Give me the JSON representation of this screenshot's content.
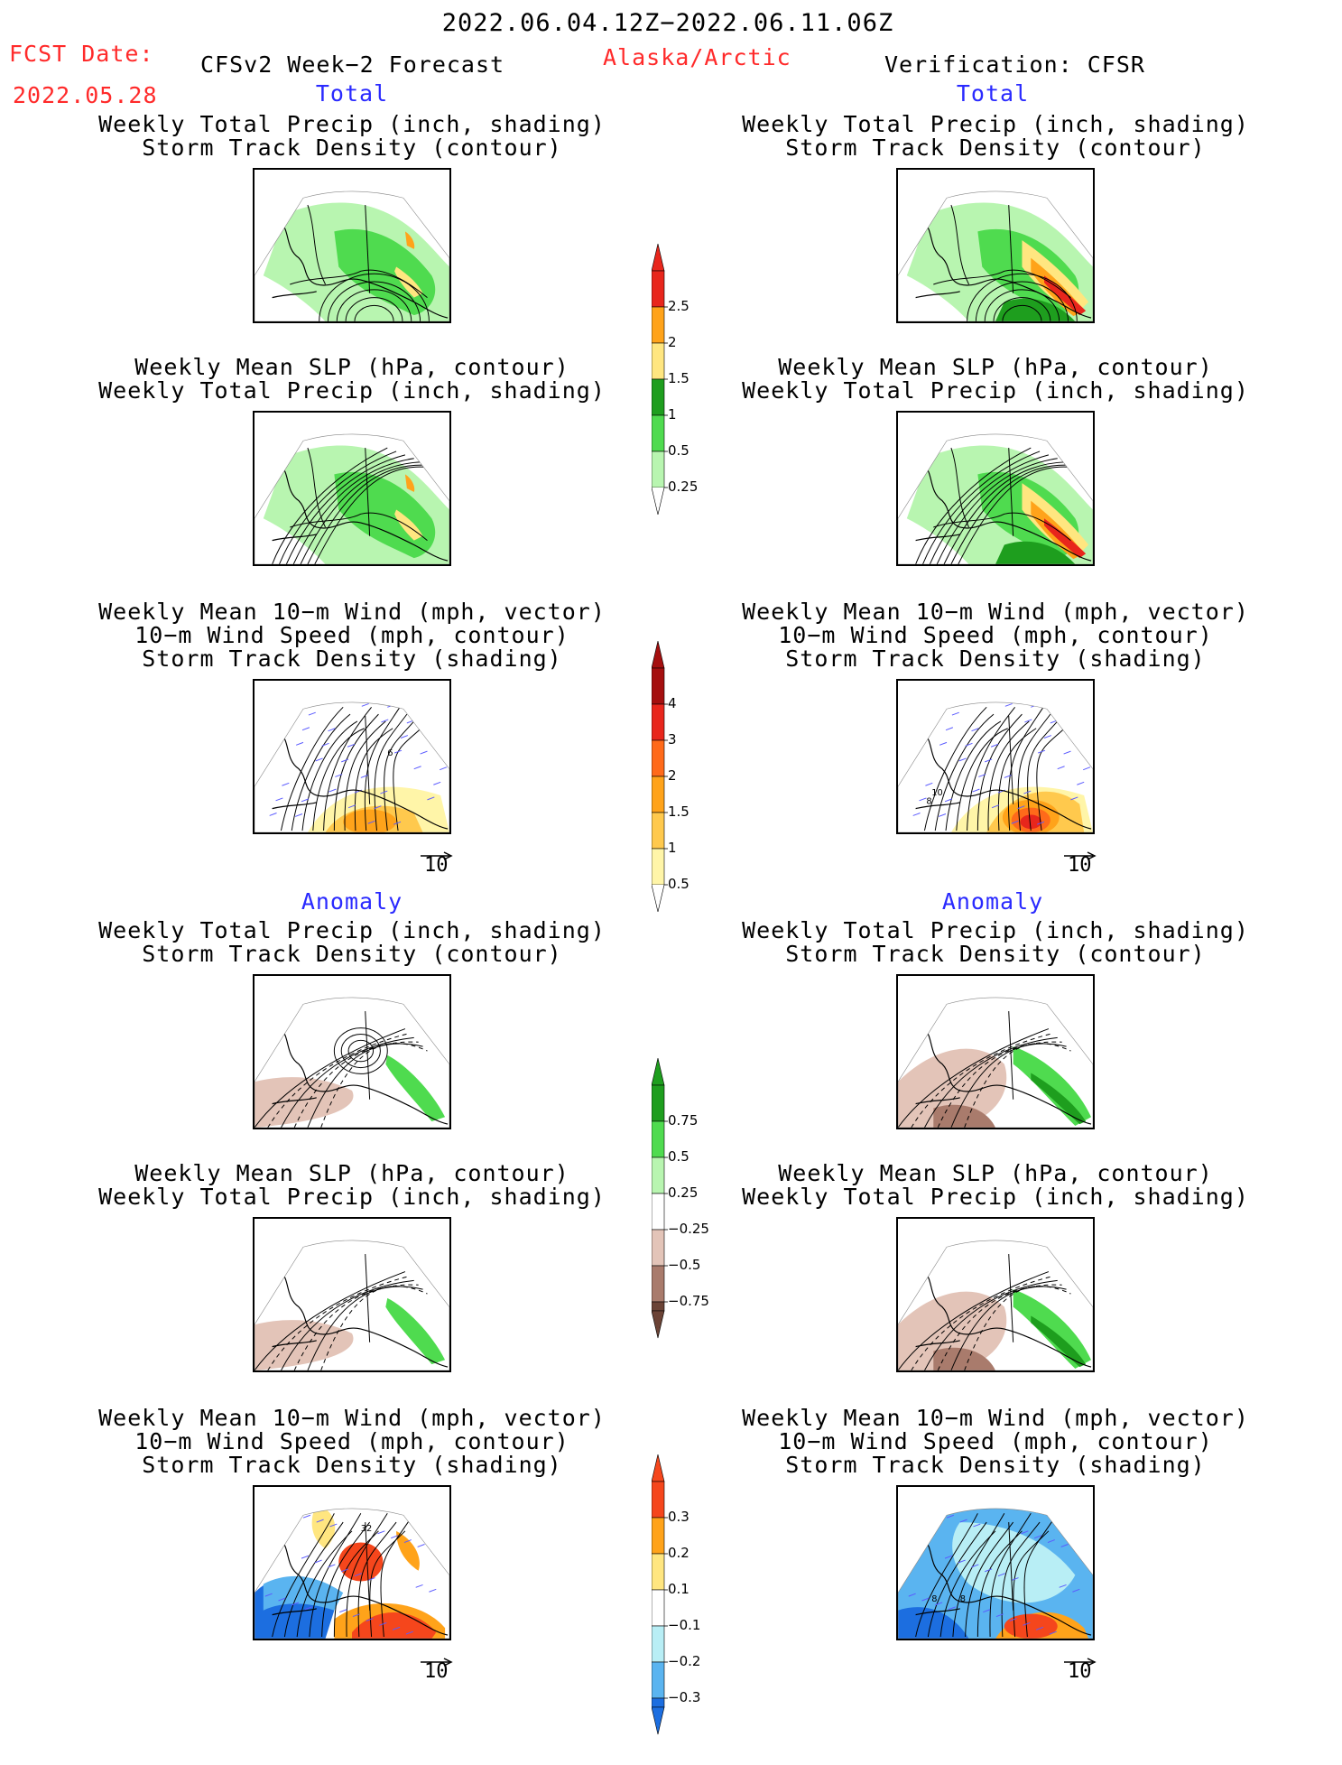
{
  "header": {
    "period": "2022.06.04.12Z−2022.06.11.06Z",
    "fcst_label": "FCST Date:",
    "fcst_date": "2022.05.28",
    "model": "CFSv2 Week−2 Forecast",
    "region": "Alaska/Arctic",
    "verification": "Verification: CFSR"
  },
  "sections": {
    "total": "Total",
    "anomaly": "Anomaly"
  },
  "titles": {
    "precip_storm": [
      "Weekly Total Precip (inch, shading)",
      "Storm Track Density (contour)"
    ],
    "slp_precip": [
      "Weekly Mean SLP (hPa, contour)",
      "Weekly Total Precip (inch, shading)"
    ],
    "wind_storm": [
      "Weekly Mean 10−m Wind (mph, vector)",
      "10−m Wind Speed (mph, contour)",
      "Storm Track Density (shading)"
    ]
  },
  "vector_scale": "10",
  "colorbars": {
    "precip_total": {
      "labels": [
        "2.5",
        "2",
        "1.5",
        "1",
        "0.5",
        "0.25"
      ],
      "colors": [
        "#e8261c",
        "#ffa31a",
        "#ffe680",
        "#1e9e1e",
        "#4fdb4f",
        "#b8f5b0"
      ]
    },
    "storm_total": {
      "labels": [
        "4",
        "3",
        "2",
        "1.5",
        "1",
        "0.5"
      ],
      "colors": [
        "#a50f0f",
        "#e8261c",
        "#ff6a1a",
        "#ffa31a",
        "#ffc94d",
        "#fff5a8"
      ]
    },
    "precip_anom": {
      "labels": [
        "0.75",
        "0.5",
        "0.25",
        "−0.25",
        "−0.5",
        "−0.75"
      ],
      "colors": [
        "#1e9e1e",
        "#4fdb4f",
        "#b8f5b0",
        "#ffffff",
        "#e3c4b8",
        "#a97b6c",
        "#6b4336"
      ]
    },
    "storm_anom": {
      "labels": [
        "0.3",
        "0.2",
        "0.1",
        "−0.1",
        "−0.2",
        "−0.3"
      ],
      "colors": [
        "#f5461c",
        "#ffa31a",
        "#ffe680",
        "#ffffff",
        "#b8eef5",
        "#5ab4f0",
        "#1c6ee0"
      ]
    }
  },
  "map_labels": {
    "left_wind_total": "6",
    "right_wind_total_a": "10",
    "right_wind_total_b": "8",
    "left_wind_anom": "32",
    "right_wind_anom_a": "8",
    "right_wind_anom_b": "8"
  }
}
